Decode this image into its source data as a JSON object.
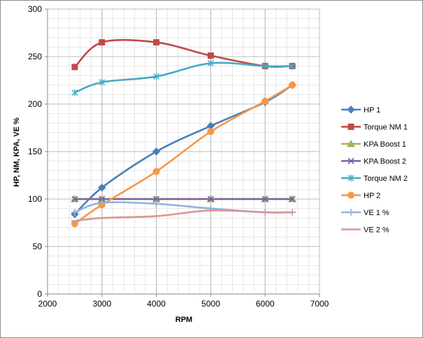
{
  "chart_data": {
    "type": "scatter",
    "title": "",
    "xlabel": "RPM",
    "ylabel": "HP, NM, KPA, VE %",
    "xlim": [
      2000,
      7000
    ],
    "ylim": [
      0,
      300
    ],
    "xticks": [
      2000,
      3000,
      4000,
      5000,
      6000,
      7000
    ],
    "yticks": [
      0,
      50,
      100,
      150,
      200,
      250,
      300
    ],
    "grid": true,
    "legend_position": "right",
    "x": [
      2500,
      3000,
      4000,
      5000,
      6000,
      6500
    ],
    "series": [
      {
        "name": "HP 1",
        "color": "#4a7ebb",
        "marker": "diamond",
        "values": [
          84,
          112,
          150,
          177,
          202,
          220
        ]
      },
      {
        "name": "Torque NM 1",
        "color": "#be4b48",
        "marker": "square",
        "values": [
          239,
          265,
          265,
          251,
          240,
          240
        ]
      },
      {
        "name": "KPA Boost 1",
        "color": "#98b954",
        "marker": "triangle",
        "values": [
          100,
          100,
          100,
          100,
          100,
          100
        ]
      },
      {
        "name": "KPA Boost 2",
        "color": "#7d60a0",
        "marker": "x",
        "values": [
          100,
          100,
          100,
          100,
          100,
          100
        ]
      },
      {
        "name": "Torque NM 2",
        "color": "#46aac5",
        "marker": "star",
        "values": [
          212,
          223,
          229,
          243,
          240,
          240
        ]
      },
      {
        "name": "HP 2",
        "color": "#f79646",
        "marker": "circle",
        "values": [
          74,
          94,
          129,
          171,
          203,
          220
        ]
      },
      {
        "name": "VE 1 %",
        "color": "#95b3d7",
        "marker": "plus",
        "values": [
          86,
          96,
          95,
          90,
          86,
          86
        ]
      },
      {
        "name": "VE 2 %",
        "color": "#d99694",
        "marker": "dash",
        "values": [
          77,
          80,
          82,
          88,
          86,
          86
        ]
      }
    ]
  }
}
